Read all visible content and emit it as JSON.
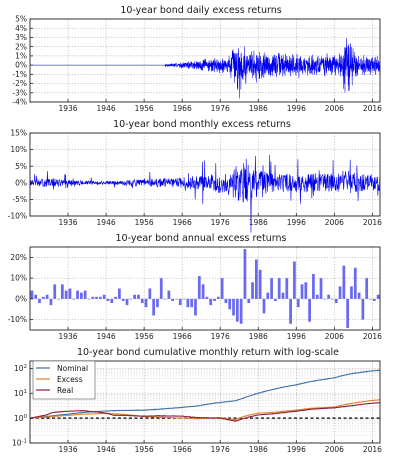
{
  "colors": {
    "blue": "#0000ee",
    "bar": "#6a6af0",
    "nominal": "#3a6ea5",
    "excess": "#d9822b",
    "real": "#8b1a3a",
    "baseline": "#000000"
  },
  "chart_data": [
    {
      "type": "line",
      "title": "10-year bond daily excess returns",
      "x_range": [
        1926,
        2018
      ],
      "xticks": [
        "1936",
        "1946",
        "1956",
        "1966",
        "1976",
        "1986",
        "1996",
        "2006",
        "2016"
      ],
      "ylim": [
        -4,
        5
      ],
      "yticks": [
        "-4%",
        "-3%",
        "-2%",
        "-1%",
        "0%",
        "1%",
        "2%",
        "3%",
        "4%",
        "5%"
      ],
      "grid": true,
      "data_start": 1961.5,
      "series": [
        {
          "x": [
            1962,
            1966,
            1970,
            1974,
            1978,
            1980,
            1981,
            1983,
            1986,
            1990,
            1994,
            1998,
            2002,
            2006,
            2008,
            2009,
            2012,
            2016,
            2018
          ],
          "amplitude": [
            0.2,
            0.35,
            0.7,
            0.9,
            1.0,
            2.8,
            3.7,
            2.0,
            2.2,
            1.5,
            1.7,
            1.3,
            1.5,
            1.3,
            1.8,
            4.3,
            1.4,
            1.2,
            1.2
          ]
        }
      ]
    },
    {
      "type": "line",
      "title": "10-year bond monthly excess returns",
      "x_range": [
        1926,
        2018
      ],
      "xticks": [
        "1936",
        "1946",
        "1956",
        "1966",
        "1976",
        "1986",
        "1996",
        "2006",
        "2016"
      ],
      "ylim": [
        -10,
        15
      ],
      "yticks": [
        "-10%",
        "-5%",
        "0%",
        "5%",
        "10%",
        "15%"
      ],
      "grid": true,
      "series": [
        {
          "x": [
            1926,
            1932,
            1936,
            1946,
            1956,
            1966,
            1970,
            1976,
            1980,
            1982,
            1986,
            1990,
            1996,
            2000,
            2006,
            2009,
            2012,
            2018
          ],
          "amplitude": [
            1.5,
            2.5,
            1.5,
            0.8,
            2.0,
            3.0,
            4.0,
            5.5,
            9.0,
            12.0,
            7.5,
            5.0,
            5.0,
            5.5,
            5.0,
            7.5,
            5.0,
            4.5
          ]
        }
      ]
    },
    {
      "type": "bar",
      "title": "10-year bond annual excess returns",
      "x": [
        1926,
        1927,
        1928,
        1929,
        1930,
        1931,
        1932,
        1933,
        1934,
        1935,
        1936,
        1937,
        1938,
        1939,
        1940,
        1941,
        1942,
        1943,
        1944,
        1945,
        1946,
        1947,
        1948,
        1949,
        1950,
        1951,
        1952,
        1953,
        1954,
        1955,
        1956,
        1957,
        1958,
        1959,
        1960,
        1961,
        1962,
        1963,
        1964,
        1965,
        1966,
        1967,
        1968,
        1969,
        1970,
        1971,
        1972,
        1973,
        1974,
        1975,
        1976,
        1977,
        1978,
        1979,
        1980,
        1981,
        1982,
        1983,
        1984,
        1985,
        1986,
        1987,
        1988,
        1989,
        1990,
        1991,
        1992,
        1993,
        1994,
        1995,
        1996,
        1997,
        1998,
        1999,
        2000,
        2001,
        2002,
        2003,
        2004,
        2005,
        2006,
        2007,
        2008,
        2009,
        2010,
        2011,
        2012,
        2013,
        2014,
        2015,
        2016,
        2017
      ],
      "values": [
        4,
        2,
        -2,
        1,
        2,
        -3,
        7,
        0,
        7,
        4,
        5,
        0,
        4,
        3,
        4,
        0,
        1,
        1,
        1,
        2,
        -1,
        -2,
        1,
        5,
        -1,
        -3,
        0,
        2,
        2,
        -2,
        -4,
        5,
        -8,
        -4,
        10,
        0,
        4,
        -1,
        0,
        -3,
        0,
        -4,
        -4,
        -8,
        11,
        7,
        1,
        -3,
        -1,
        1,
        10,
        -2,
        -5,
        -8,
        -11,
        -12,
        24,
        -2,
        8,
        19,
        14,
        -7,
        3,
        10,
        -1,
        10,
        3,
        10,
        -12,
        18,
        -4,
        7,
        8,
        -11,
        12,
        2,
        10,
        0,
        2,
        0,
        -2,
        6,
        16,
        -14,
        6,
        15,
        3,
        -10,
        10,
        0,
        -1,
        2
      ],
      "ylim": [
        -15,
        25
      ],
      "yticks": [
        "-10%",
        "0%",
        "10%",
        "20%"
      ],
      "xticks": [
        "1936",
        "1946",
        "1956",
        "1966",
        "1976",
        "1986",
        "1996",
        "2006",
        "2016"
      ],
      "grid": true
    },
    {
      "type": "line",
      "title": "10-year bond cumulative monthly return with log-scale",
      "y_scale": "log",
      "ylim": [
        0.1,
        200
      ],
      "ytick_exponents": [
        "-1",
        "0",
        "1",
        "2"
      ],
      "xticks": [
        "1936",
        "1946",
        "1956",
        "1966",
        "1976",
        "1986",
        "1996",
        "2006",
        "2016"
      ],
      "x_range": [
        1926,
        2018
      ],
      "legend": "top-left",
      "grid": true,
      "baseline": 1,
      "series": [
        {
          "name": "Nominal",
          "x": [
            1926,
            1930,
            1936,
            1940,
            1946,
            1950,
            1956,
            1960,
            1966,
            1970,
            1976,
            1980,
            1982,
            1986,
            1990,
            1996,
            2000,
            2006,
            2010,
            2016,
            2018
          ],
          "values": [
            1.0,
            1.15,
            1.45,
            1.7,
            1.95,
            2.05,
            2.1,
            2.3,
            2.7,
            3.1,
            4.3,
            5.0,
            6.3,
            10.0,
            14.5,
            22.0,
            30.0,
            42.0,
            60.0,
            80.0,
            85.0
          ]
        },
        {
          "name": "Excess",
          "x": [
            1926,
            1930,
            1936,
            1940,
            1946,
            1950,
            1956,
            1960,
            1966,
            1970,
            1976,
            1980,
            1982,
            1986,
            1990,
            1996,
            2000,
            2006,
            2010,
            2016,
            2018
          ],
          "values": [
            1.0,
            1.1,
            1.3,
            1.45,
            1.55,
            1.45,
            1.15,
            1.1,
            1.0,
            0.95,
            1.05,
            0.85,
            1.15,
            1.6,
            1.7,
            2.1,
            2.5,
            2.8,
            3.8,
            5.2,
            5.5
          ]
        },
        {
          "name": "Real",
          "x": [
            1926,
            1930,
            1932,
            1936,
            1940,
            1946,
            1948,
            1950,
            1956,
            1960,
            1966,
            1970,
            1976,
            1980,
            1982,
            1986,
            1990,
            1996,
            2000,
            2006,
            2010,
            2016,
            2018
          ],
          "values": [
            1.0,
            1.3,
            1.7,
            1.9,
            2.0,
            1.6,
            1.3,
            1.3,
            1.2,
            1.25,
            1.2,
            1.05,
            1.0,
            0.75,
            0.95,
            1.35,
            1.5,
            1.9,
            2.3,
            2.6,
            3.1,
            4.0,
            4.2
          ]
        }
      ]
    }
  ]
}
